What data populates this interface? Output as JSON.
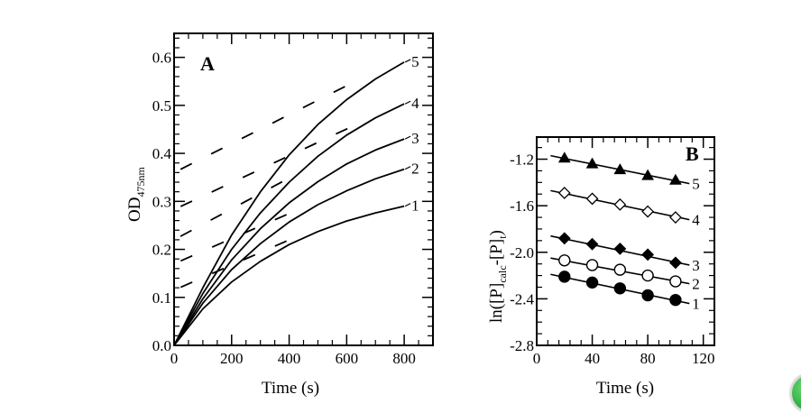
{
  "chart_data": [
    {
      "type": "line",
      "panel_label": "A",
      "title": "",
      "xlabel": "Time (s)",
      "ylabel": "OD",
      "ylabel_subscript": "475nm",
      "xlim": [
        0,
        900
      ],
      "ylim": [
        0,
        0.65
      ],
      "xticks": [
        0,
        200,
        400,
        600,
        800
      ],
      "xtick_labels": [
        "0",
        "200",
        "400",
        "600",
        "800"
      ],
      "yticks": [
        0.0,
        0.1,
        0.2,
        0.3,
        0.4,
        0.5,
        0.6
      ],
      "ytick_labels": [
        "0.0",
        "0.1",
        "0.2",
        "0.3",
        "0.4",
        "0.5",
        "0.6"
      ],
      "grid": false,
      "series": [
        {
          "name": "1",
          "style": "solid",
          "model": "exponential_rise",
          "x": [
            0,
            100,
            200,
            300,
            400,
            500,
            600,
            700,
            800
          ],
          "values": [
            0,
            0.076,
            0.132,
            0.175,
            0.21,
            0.237,
            0.259,
            0.276,
            0.29
          ]
        },
        {
          "name": "2",
          "style": "solid",
          "model": "exponential_rise",
          "x": [
            0,
            100,
            200,
            300,
            400,
            500,
            600,
            700,
            800
          ],
          "values": [
            0,
            0.088,
            0.158,
            0.212,
            0.257,
            0.293,
            0.322,
            0.347,
            0.367
          ]
        },
        {
          "name": "3",
          "style": "solid",
          "model": "exponential_rise",
          "x": [
            0,
            100,
            200,
            300,
            400,
            500,
            600,
            700,
            800
          ],
          "values": [
            0,
            0.097,
            0.178,
            0.243,
            0.297,
            0.341,
            0.378,
            0.407,
            0.43
          ]
        },
        {
          "name": "4",
          "style": "solid",
          "model": "exponential_rise",
          "x": [
            0,
            100,
            200,
            300,
            400,
            500,
            600,
            700,
            800
          ],
          "values": [
            0,
            0.108,
            0.2,
            0.276,
            0.34,
            0.394,
            0.438,
            0.474,
            0.503
          ]
        },
        {
          "name": "5",
          "style": "solid",
          "model": "exponential_rise",
          "x": [
            0,
            100,
            200,
            300,
            400,
            500,
            600,
            700,
            800
          ],
          "values": [
            0,
            0.12,
            0.23,
            0.32,
            0.397,
            0.46,
            0.512,
            0.555,
            0.59
          ]
        }
      ],
      "dashed_lines": [
        {
          "name": "1",
          "x": [
            0,
            420
          ],
          "values": [
            0.115,
            0.225
          ]
        },
        {
          "name": "2",
          "x": [
            0,
            420
          ],
          "values": [
            0.17,
            0.28
          ]
        },
        {
          "name": "3",
          "x": [
            0,
            420
          ],
          "values": [
            0.22,
            0.355
          ]
        },
        {
          "name": "4",
          "x": [
            0,
            640
          ],
          "values": [
            0.283,
            0.462
          ]
        },
        {
          "name": "5",
          "x": [
            0,
            640
          ],
          "values": [
            0.36,
            0.553
          ]
        }
      ]
    },
    {
      "type": "scatter",
      "panel_label": "B",
      "title": "",
      "xlabel": "Time (s)",
      "ylabel": "ln([P]calc-[P]t)",
      "ylabel_parts": [
        "ln([P]",
        "calc",
        "-[P]",
        "t",
        ")"
      ],
      "xlim": [
        0,
        128
      ],
      "ylim": [
        -2.8,
        -1.01
      ],
      "xticks": [
        0,
        40,
        80,
        120
      ],
      "xtick_labels": [
        "0",
        "40",
        "80",
        "120"
      ],
      "yticks": [
        -2.8,
        -2.4,
        -2.0,
        -1.6,
        -1.2
      ],
      "ytick_labels": [
        "-2.8",
        "-2.4",
        "-2.0",
        "-1.6",
        "-1.2"
      ],
      "grid": false,
      "x": [
        20,
        40,
        60,
        80,
        100
      ],
      "series": [
        {
          "name": "1",
          "marker": "filled-circle",
          "values": [
            -2.21,
            -2.26,
            -2.31,
            -2.37,
            -2.41
          ],
          "fit": [
            [
              10,
              -2.19
            ],
            [
              110,
              -2.44
            ]
          ]
        },
        {
          "name": "2",
          "marker": "open-circle",
          "values": [
            -2.07,
            -2.11,
            -2.15,
            -2.2,
            -2.25
          ],
          "fit": [
            [
              10,
              -2.05
            ],
            [
              110,
              -2.27
            ]
          ]
        },
        {
          "name": "3",
          "marker": "filled-diamond",
          "values": [
            -1.88,
            -1.93,
            -1.97,
            -2.02,
            -2.09
          ],
          "fit": [
            [
              10,
              -1.86
            ],
            [
              110,
              -2.11
            ]
          ]
        },
        {
          "name": "4",
          "marker": "open-diamond",
          "values": [
            -1.49,
            -1.54,
            -1.59,
            -1.65,
            -1.7
          ],
          "fit": [
            [
              10,
              -1.47
            ],
            [
              110,
              -1.72
            ]
          ]
        },
        {
          "name": "5",
          "marker": "filled-triangle",
          "values": [
            -1.19,
            -1.24,
            -1.29,
            -1.34,
            -1.38
          ],
          "fit": [
            [
              10,
              -1.17
            ],
            [
              110,
              -1.41
            ]
          ]
        }
      ]
    }
  ]
}
